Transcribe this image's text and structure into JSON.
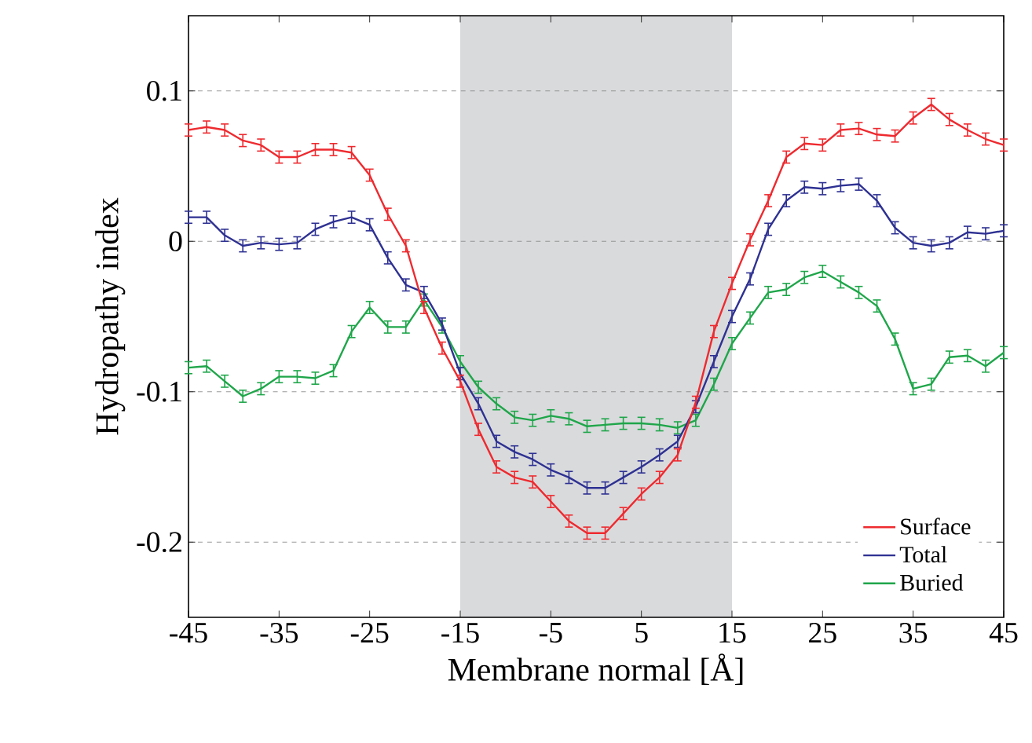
{
  "chart_data": {
    "type": "line",
    "xlabel": "Membrane normal [Å]",
    "ylabel": "Hydropathy index",
    "x": [
      -45,
      -43,
      -41,
      -39,
      -37,
      -35,
      -33,
      -31,
      -29,
      -27,
      -25,
      -23,
      -21,
      -19,
      -17,
      -15,
      -13,
      -11,
      -9,
      -7,
      -5,
      -3,
      -1,
      1,
      3,
      5,
      7,
      9,
      11,
      13,
      15,
      17,
      19,
      21,
      23,
      25,
      27,
      29,
      31,
      33,
      35,
      37,
      39,
      41,
      43,
      45
    ],
    "series": [
      {
        "name": "Surface",
        "color": "#ee2a2f",
        "values": [
          0.074,
          0.076,
          0.074,
          0.067,
          0.064,
          0.056,
          0.056,
          0.061,
          0.061,
          0.059,
          0.044,
          0.018,
          -0.003,
          -0.044,
          -0.071,
          -0.093,
          -0.125,
          -0.15,
          -0.157,
          -0.16,
          -0.173,
          -0.186,
          -0.194,
          -0.194,
          -0.181,
          -0.168,
          -0.157,
          -0.142,
          -0.107,
          -0.06,
          -0.028,
          0.001,
          0.027,
          0.056,
          0.065,
          0.064,
          0.074,
          0.075,
          0.071,
          0.07,
          0.082,
          0.091,
          0.081,
          0.074,
          0.068,
          0.064
        ],
        "errors": [
          0.004,
          0.004,
          0.004,
          0.004,
          0.004,
          0.004,
          0.004,
          0.004,
          0.004,
          0.004,
          0.004,
          0.004,
          0.004,
          0.004,
          0.004,
          0.004,
          0.004,
          0.004,
          0.004,
          0.004,
          0.004,
          0.004,
          0.004,
          0.004,
          0.004,
          0.004,
          0.004,
          0.004,
          0.004,
          0.004,
          0.004,
          0.004,
          0.004,
          0.004,
          0.004,
          0.004,
          0.004,
          0.004,
          0.004,
          0.004,
          0.004,
          0.004,
          0.004,
          0.004,
          0.004,
          0.004
        ]
      },
      {
        "name": "Total",
        "color": "#2e3192",
        "values": [
          0.016,
          0.016,
          0.004,
          -0.003,
          -0.001,
          -0.002,
          -0.001,
          0.008,
          0.013,
          0.016,
          0.011,
          -0.011,
          -0.029,
          -0.034,
          -0.055,
          -0.088,
          -0.108,
          -0.133,
          -0.14,
          -0.145,
          -0.152,
          -0.157,
          -0.164,
          -0.164,
          -0.157,
          -0.15,
          -0.142,
          -0.133,
          -0.11,
          -0.08,
          -0.05,
          -0.025,
          0.008,
          0.027,
          0.036,
          0.035,
          0.037,
          0.038,
          0.027,
          0.009,
          -0.001,
          -0.003,
          -0.001,
          0.006,
          0.005,
          0.007
        ],
        "errors": [
          0.004,
          0.004,
          0.004,
          0.004,
          0.004,
          0.004,
          0.004,
          0.004,
          0.004,
          0.004,
          0.004,
          0.004,
          0.004,
          0.004,
          0.004,
          0.004,
          0.004,
          0.004,
          0.004,
          0.004,
          0.004,
          0.004,
          0.004,
          0.004,
          0.004,
          0.004,
          0.004,
          0.004,
          0.004,
          0.004,
          0.004,
          0.004,
          0.004,
          0.004,
          0.004,
          0.004,
          0.004,
          0.004,
          0.004,
          0.004,
          0.004,
          0.004,
          0.004,
          0.004,
          0.004,
          0.004
        ]
      },
      {
        "name": "Buried",
        "color": "#1fa64a",
        "values": [
          -0.084,
          -0.083,
          -0.093,
          -0.103,
          -0.098,
          -0.09,
          -0.09,
          -0.091,
          -0.086,
          -0.06,
          -0.044,
          -0.057,
          -0.057,
          -0.039,
          -0.057,
          -0.08,
          -0.097,
          -0.108,
          -0.117,
          -0.119,
          -0.116,
          -0.118,
          -0.123,
          -0.122,
          -0.121,
          -0.121,
          -0.122,
          -0.124,
          -0.119,
          -0.095,
          -0.068,
          -0.051,
          -0.034,
          -0.032,
          -0.024,
          -0.02,
          -0.027,
          -0.034,
          -0.043,
          -0.065,
          -0.098,
          -0.095,
          -0.077,
          -0.076,
          -0.083,
          -0.074
        ],
        "errors": [
          0.004,
          0.004,
          0.004,
          0.004,
          0.004,
          0.004,
          0.004,
          0.004,
          0.004,
          0.004,
          0.004,
          0.004,
          0.004,
          0.004,
          0.004,
          0.004,
          0.004,
          0.004,
          0.004,
          0.004,
          0.004,
          0.004,
          0.004,
          0.004,
          0.004,
          0.004,
          0.004,
          0.004,
          0.004,
          0.004,
          0.004,
          0.004,
          0.004,
          0.004,
          0.004,
          0.004,
          0.004,
          0.004,
          0.004,
          0.004,
          0.004,
          0.004,
          0.004,
          0.004,
          0.004,
          0.004
        ]
      }
    ],
    "xlim": [
      -45,
      45
    ],
    "ylim": [
      -0.25,
      0.15
    ],
    "xticks": [
      -45,
      -35,
      -25,
      -15,
      -5,
      5,
      15,
      25,
      35,
      45
    ],
    "yticks": [
      -0.2,
      -0.1,
      0,
      0.1
    ],
    "bands": [
      {
        "axis": "x",
        "from": -15,
        "to": 15,
        "color": "#d9dadc"
      }
    ],
    "grid": "y",
    "legend": "bottom right",
    "marker": "none",
    "line_style": "solid"
  }
}
